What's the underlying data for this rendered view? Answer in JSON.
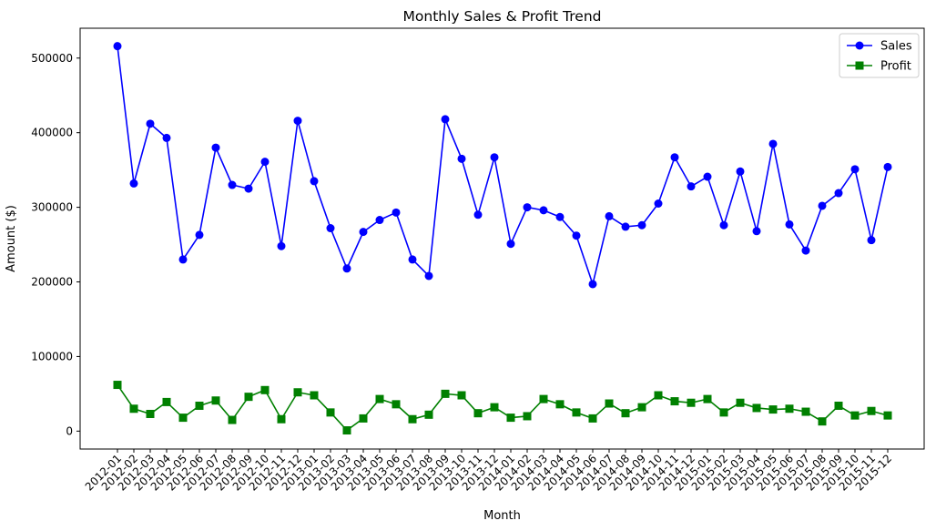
{
  "chart_data": {
    "type": "line",
    "title": "Monthly Sales & Profit Trend",
    "xlabel": "Month",
    "ylabel": "Amount ($)",
    "ylim": [
      -24000,
      540000
    ],
    "yticks": [
      0,
      100000,
      200000,
      300000,
      400000,
      500000
    ],
    "grid": false,
    "legend_position": "top-right",
    "categories": [
      "2012-01",
      "2012-02",
      "2012-03",
      "2012-04",
      "2012-05",
      "2012-06",
      "2012-07",
      "2012-08",
      "2012-09",
      "2012-10",
      "2012-11",
      "2012-12",
      "2013-01",
      "2013-02",
      "2013-03",
      "2013-04",
      "2013-05",
      "2013-06",
      "2013-07",
      "2013-08",
      "2013-09",
      "2013-10",
      "2013-11",
      "2013-12",
      "2014-01",
      "2014-02",
      "2014-03",
      "2014-04",
      "2014-05",
      "2014-06",
      "2014-07",
      "2014-08",
      "2014-09",
      "2014-10",
      "2014-11",
      "2014-12",
      "2015-01",
      "2015-02",
      "2015-03",
      "2015-04",
      "2015-05",
      "2015-06",
      "2015-07",
      "2015-08",
      "2015-09",
      "2015-10",
      "2015-11",
      "2015-12"
    ],
    "series": [
      {
        "name": "Sales",
        "color": "#0000ff",
        "marker": "circle",
        "values": [
          516000,
          332000,
          412000,
          393000,
          230000,
          263000,
          380000,
          330000,
          325000,
          361000,
          248000,
          416000,
          335000,
          272000,
          218000,
          267000,
          283000,
          293000,
          230000,
          208000,
          418000,
          365000,
          290000,
          367000,
          251000,
          300000,
          296000,
          287000,
          262000,
          197000,
          288000,
          274000,
          276000,
          305000,
          367000,
          328000,
          341000,
          276000,
          348000,
          268000,
          385000,
          277000,
          242000,
          302000,
          319000,
          351000,
          256000,
          354000
        ]
      },
      {
        "name": "Profit",
        "color": "#008000",
        "marker": "square",
        "values": [
          62000,
          30000,
          23000,
          39000,
          18000,
          34000,
          41000,
          15000,
          46000,
          55000,
          16000,
          52000,
          48000,
          25000,
          1000,
          17000,
          43000,
          36000,
          16000,
          22000,
          50000,
          48000,
          24000,
          32000,
          18000,
          20000,
          43000,
          36000,
          25000,
          17000,
          37000,
          24000,
          32000,
          48000,
          40000,
          38000,
          43000,
          25000,
          38000,
          31000,
          29000,
          30000,
          26000,
          13000,
          34000,
          21000,
          27000,
          21000
        ]
      }
    ]
  }
}
